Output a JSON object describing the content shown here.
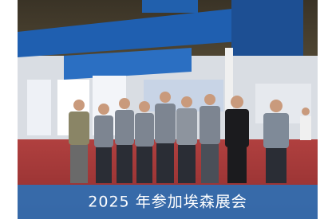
{
  "caption": "2025 年参加埃森展会"
}
